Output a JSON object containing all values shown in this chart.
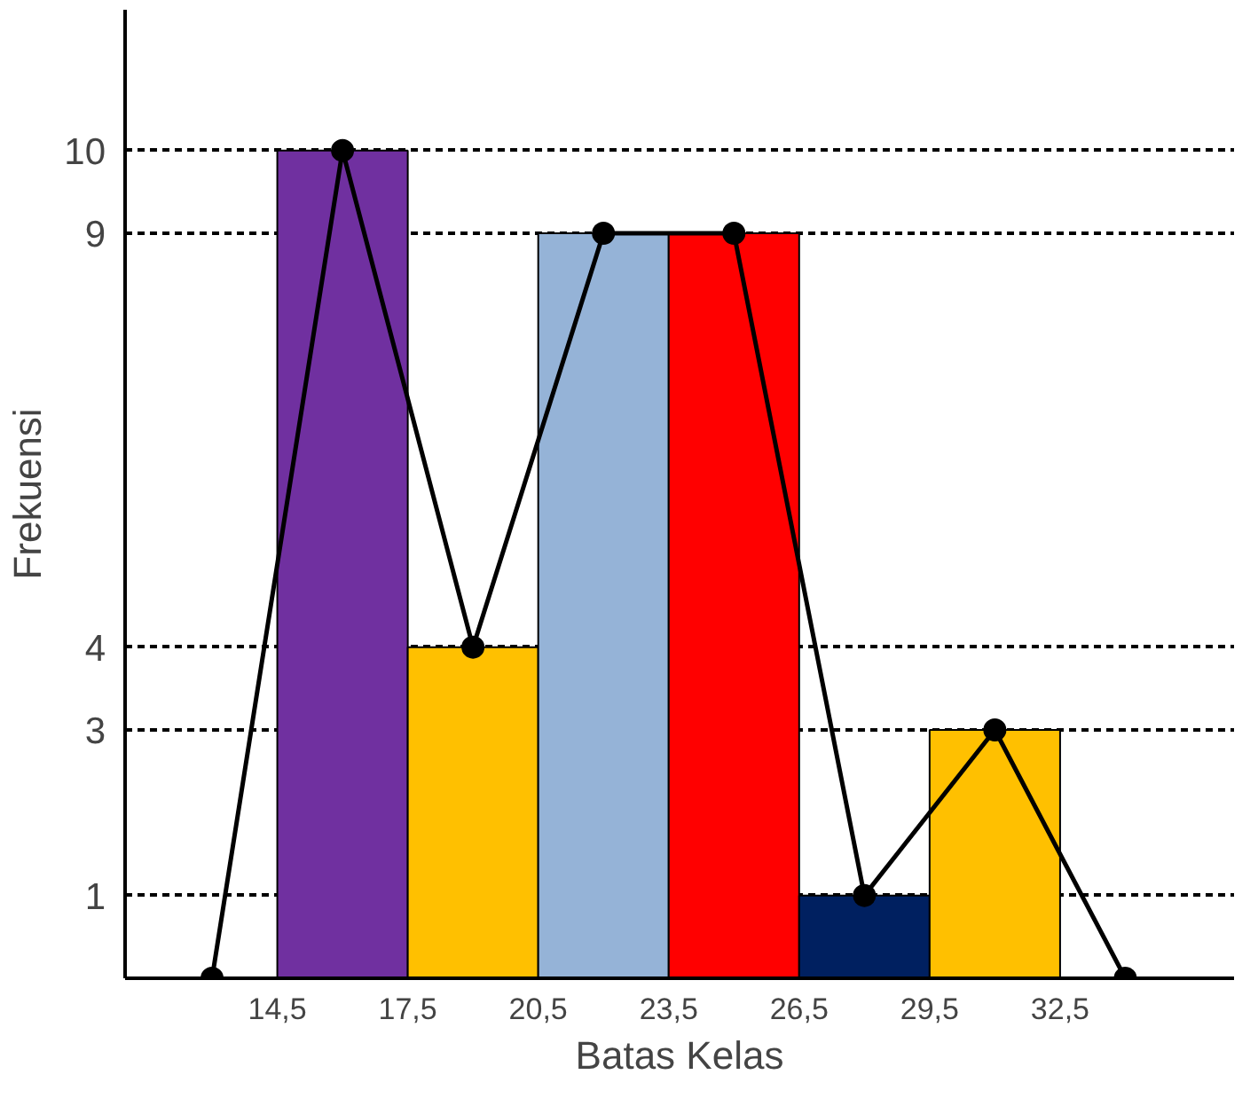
{
  "chart_data": {
    "type": "histogram",
    "xlabel": "Batas Kelas",
    "ylabel": "Frekuensi",
    "bins": [
      14.5,
      17.5,
      20.5,
      23.5,
      26.5,
      29.5,
      32.5
    ],
    "values": [
      10,
      4,
      9,
      9,
      1,
      3
    ],
    "colors": [
      "#7030a0",
      "#ffc000",
      "#95b3d7",
      "#ff0000",
      "#002060",
      "#ffc000"
    ],
    "series": [
      {
        "type": "line",
        "x": [
          13,
          16,
          19,
          22,
          25,
          28,
          31,
          34
        ],
        "values": [
          0,
          10,
          4,
          9,
          9,
          1,
          3,
          0
        ],
        "color": "#000000"
      }
    ],
    "marker": "circle",
    "xlim": [
      11,
      36.5
    ],
    "ylim": [
      0,
      11.7
    ],
    "xticks": [
      {
        "value": 14.5,
        "label": "14,5"
      },
      {
        "value": 17.5,
        "label": "17,5"
      },
      {
        "value": 20.5,
        "label": "20,5"
      },
      {
        "value": 23.5,
        "label": "23,5"
      },
      {
        "value": 26.5,
        "label": "26,5"
      },
      {
        "value": 29.5,
        "label": "29,5"
      },
      {
        "value": 32.5,
        "label": "32,5"
      }
    ],
    "yticks": [
      1,
      3,
      4,
      9,
      10
    ],
    "grid": "y"
  }
}
